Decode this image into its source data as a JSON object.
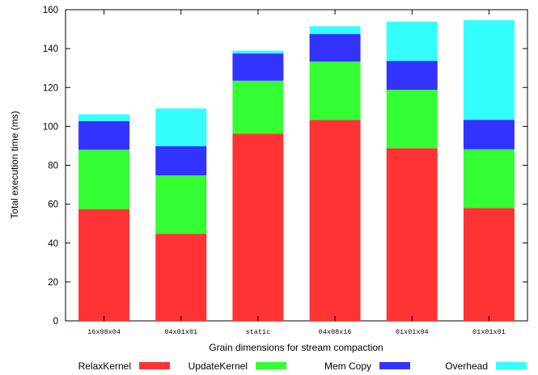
{
  "chart_data": {
    "type": "bar",
    "stacked": true,
    "categories": [
      "16x08x04",
      "04x01x01",
      "static",
      "04x08x16",
      "01x01x04",
      "01x01x01"
    ],
    "series": [
      {
        "name": "RelaxKernel",
        "color": "#ff3333",
        "values": [
          57.5,
          44.8,
          96.3,
          103.3,
          88.8,
          58.0
        ]
      },
      {
        "name": "UpdateKernel",
        "color": "#33ff33",
        "values": [
          30.5,
          30.0,
          27.2,
          30.0,
          30.0,
          30.2
        ]
      },
      {
        "name": "Mem Copy",
        "color": "#3333ff",
        "values": [
          14.7,
          15.0,
          14.0,
          14.2,
          14.9,
          15.2
        ]
      },
      {
        "name": "Overhead",
        "color": "#33ffff",
        "values": [
          3.5,
          19.4,
          1.4,
          4.0,
          20.2,
          51.2
        ]
      }
    ],
    "title": "",
    "xlabel": "Grain dimensions for stream compaction",
    "ylabel": "Total execution time (ms)",
    "ylim": [
      0,
      160
    ],
    "yticks": [
      0,
      20,
      40,
      60,
      80,
      100,
      120,
      140,
      160
    ],
    "grid": false,
    "legend_position": "bottom"
  }
}
